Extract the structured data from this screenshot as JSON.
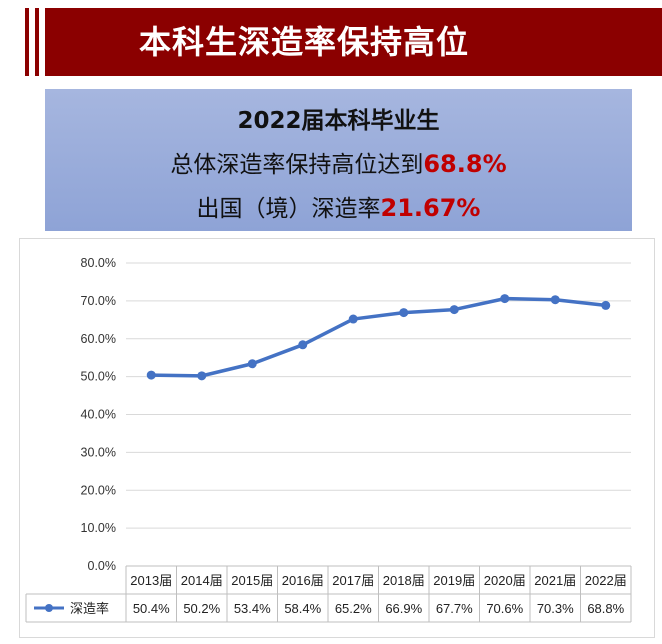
{
  "banner": {
    "title": "本科生深造率保持高位"
  },
  "summary": {
    "line1": "2022届本科毕业生",
    "line2_prefix": "总体深造率保持高位达到",
    "line2_value": "68.8%",
    "line3_prefix": "出国（境）深造率",
    "line3_value": "21.67%"
  },
  "colors": {
    "banner": "#8b0000",
    "series": "#4472c4",
    "highlight": "#c00000"
  },
  "chart_data": {
    "type": "line",
    "categories": [
      "2013届",
      "2014届",
      "2015届",
      "2016届",
      "2017届",
      "2018届",
      "2019届",
      "2020届",
      "2021届",
      "2022届"
    ],
    "series": [
      {
        "name": "深造率",
        "values": [
          50.4,
          50.2,
          53.4,
          58.4,
          65.2,
          66.9,
          67.7,
          70.6,
          70.3,
          68.8
        ],
        "labels": [
          "50.4%",
          "50.2%",
          "53.4%",
          "58.4%",
          "65.2%",
          "66.9%",
          "67.7%",
          "70.6%",
          "70.3%",
          "68.8%"
        ]
      }
    ],
    "ylim": [
      0,
      80
    ],
    "yticks": [
      "0.0%",
      "10.0%",
      "20.0%",
      "30.0%",
      "40.0%",
      "50.0%",
      "60.0%",
      "70.0%",
      "80.0%"
    ],
    "grid": true,
    "data_table": true,
    "legend": "in data table"
  }
}
